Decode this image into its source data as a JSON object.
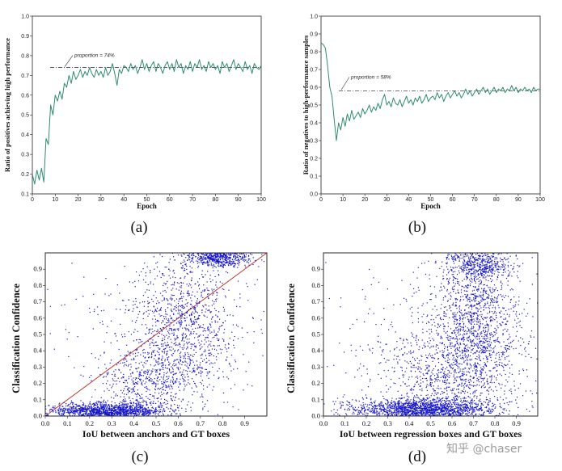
{
  "panel_labels": [
    "(a)",
    "(b)",
    "(c)",
    "(d)"
  ],
  "watermark": "知乎 @chaser",
  "chart_data": [
    {
      "type": "line",
      "panel": "(a)",
      "xlabel": "Epoch",
      "ylabel": "Ratio of positives achieving high performance",
      "xlim": [
        0,
        100
      ],
      "ylim": [
        0.1,
        1.0
      ],
      "x_ticks": [
        "0",
        "10",
        "20",
        "30",
        "40",
        "50",
        "60",
        "70",
        "80",
        "90",
        "100"
      ],
      "y_ticks": [
        "0.1",
        "0.2",
        "0.3",
        "0.4",
        "0.5",
        "0.6",
        "0.7",
        "0.8",
        "0.9",
        "1.0"
      ],
      "reference_line": {
        "y": 0.74,
        "style": "dash-dot"
      },
      "annotation": "proportion = 74%",
      "line_color": "#2e8b6e",
      "series": [
        {
          "x": [
            0,
            1,
            2,
            3,
            4,
            5,
            6,
            7,
            8,
            9,
            10,
            11,
            12,
            13,
            14,
            15,
            16,
            17,
            18,
            19,
            20,
            21,
            22,
            23,
            24,
            25,
            26,
            27,
            28,
            29,
            30,
            31,
            32,
            33,
            34,
            35,
            36,
            37,
            38,
            39,
            40,
            41,
            42,
            43,
            44,
            45,
            46,
            47,
            48,
            49,
            50,
            51,
            52,
            53,
            54,
            55,
            56,
            57,
            58,
            59,
            60,
            61,
            62,
            63,
            64,
            65,
            66,
            67,
            68,
            69,
            70,
            71,
            72,
            73,
            74,
            75,
            76,
            77,
            78,
            79,
            80,
            81,
            82,
            83,
            84,
            85,
            86,
            87,
            88,
            89,
            90,
            91,
            92,
            93,
            94,
            95,
            96,
            97,
            98,
            99,
            100
          ],
          "values": [
            0.2,
            0.15,
            0.22,
            0.17,
            0.23,
            0.16,
            0.38,
            0.35,
            0.55,
            0.5,
            0.6,
            0.57,
            0.62,
            0.58,
            0.66,
            0.64,
            0.7,
            0.66,
            0.72,
            0.68,
            0.7,
            0.73,
            0.69,
            0.72,
            0.7,
            0.74,
            0.71,
            0.69,
            0.73,
            0.7,
            0.72,
            0.69,
            0.74,
            0.7,
            0.72,
            0.76,
            0.71,
            0.65,
            0.73,
            0.71,
            0.75,
            0.74,
            0.72,
            0.76,
            0.73,
            0.75,
            0.71,
            0.74,
            0.78,
            0.73,
            0.76,
            0.72,
            0.75,
            0.77,
            0.72,
            0.76,
            0.74,
            0.71,
            0.75,
            0.77,
            0.73,
            0.76,
            0.72,
            0.78,
            0.74,
            0.76,
            0.71,
            0.75,
            0.73,
            0.77,
            0.72,
            0.76,
            0.74,
            0.78,
            0.73,
            0.75,
            0.72,
            0.77,
            0.74,
            0.76,
            0.73,
            0.75,
            0.71,
            0.77,
            0.74,
            0.76,
            0.72,
            0.75,
            0.78,
            0.73,
            0.76,
            0.74,
            0.72,
            0.77,
            0.73,
            0.75,
            0.71,
            0.76,
            0.74,
            0.73,
            0.75
          ]
        }
      ]
    },
    {
      "type": "line",
      "panel": "(b)",
      "xlabel": "Epoch",
      "ylabel": "Ratio of negatives to high-performance samples",
      "xlim": [
        0,
        100
      ],
      "ylim": [
        0.0,
        1.0
      ],
      "x_ticks": [
        "0",
        "10",
        "20",
        "30",
        "40",
        "50",
        "60",
        "70",
        "80",
        "90",
        "100"
      ],
      "y_ticks": [
        "0.0",
        "0.1",
        "0.2",
        "0.3",
        "0.4",
        "0.5",
        "0.6",
        "0.7",
        "0.8",
        "0.9",
        "1.0"
      ],
      "reference_line": {
        "y": 0.58,
        "style": "dash-dot"
      },
      "annotation": "proportion = 58%",
      "line_color": "#2e8b6e",
      "series": [
        {
          "x": [
            0,
            1,
            2,
            3,
            4,
            5,
            6,
            7,
            8,
            9,
            10,
            11,
            12,
            13,
            14,
            15,
            16,
            17,
            18,
            19,
            20,
            21,
            22,
            23,
            24,
            25,
            26,
            27,
            28,
            29,
            30,
            31,
            32,
            33,
            34,
            35,
            36,
            37,
            38,
            39,
            40,
            41,
            42,
            43,
            44,
            45,
            46,
            47,
            48,
            49,
            50,
            51,
            52,
            53,
            54,
            55,
            56,
            57,
            58,
            59,
            60,
            61,
            62,
            63,
            64,
            65,
            66,
            67,
            68,
            69,
            70,
            71,
            72,
            73,
            74,
            75,
            76,
            77,
            78,
            79,
            80,
            81,
            82,
            83,
            84,
            85,
            86,
            87,
            88,
            89,
            90,
            91,
            92,
            93,
            94,
            95,
            96,
            97,
            98,
            99,
            100
          ],
          "values": [
            0.85,
            0.84,
            0.82,
            0.72,
            0.6,
            0.55,
            0.42,
            0.3,
            0.4,
            0.36,
            0.43,
            0.38,
            0.45,
            0.41,
            0.47,
            0.42,
            0.44,
            0.46,
            0.43,
            0.48,
            0.45,
            0.47,
            0.5,
            0.46,
            0.49,
            0.47,
            0.51,
            0.48,
            0.53,
            0.56,
            0.5,
            0.52,
            0.49,
            0.54,
            0.51,
            0.5,
            0.53,
            0.49,
            0.52,
            0.55,
            0.51,
            0.53,
            0.5,
            0.54,
            0.52,
            0.55,
            0.51,
            0.53,
            0.56,
            0.52,
            0.54,
            0.55,
            0.53,
            0.57,
            0.54,
            0.56,
            0.52,
            0.55,
            0.57,
            0.54,
            0.56,
            0.58,
            0.55,
            0.57,
            0.54,
            0.56,
            0.59,
            0.56,
            0.58,
            0.55,
            0.57,
            0.59,
            0.56,
            0.58,
            0.6,
            0.57,
            0.59,
            0.56,
            0.58,
            0.6,
            0.57,
            0.59,
            0.58,
            0.6,
            0.57,
            0.59,
            0.58,
            0.61,
            0.58,
            0.6,
            0.57,
            0.59,
            0.58,
            0.6,
            0.58,
            0.59,
            0.57,
            0.6,
            0.58,
            0.59,
            0.59
          ]
        }
      ]
    },
    {
      "type": "scatter",
      "panel": "(c)",
      "xlabel": "IoU between anchors and GT boxes",
      "ylabel": "Classification Confidence",
      "xlim": [
        0.0,
        1.0
      ],
      "ylim": [
        0.0,
        1.0
      ],
      "x_ticks": [
        "0.0",
        "0.1",
        "0.2",
        "0.3",
        "0.4",
        "0.5",
        "0.6",
        "0.7",
        "0.8",
        "0.9"
      ],
      "y_ticks": [
        "0.0",
        "0.1",
        "0.2",
        "0.3",
        "0.4",
        "0.5",
        "0.6",
        "0.7",
        "0.8",
        "0.9"
      ],
      "diagonal": {
        "from": [
          0.0,
          0.0
        ],
        "to": [
          1.0,
          1.0
        ],
        "color": "#c0392b"
      },
      "point_color": "#1515c8",
      "clusters": [
        {
          "cx": 0.28,
          "cy": 0.03,
          "sx": 0.13,
          "sy": 0.025,
          "count": 1400
        },
        {
          "cx": 0.78,
          "cy": 0.97,
          "sx": 0.07,
          "sy": 0.03,
          "count": 600
        },
        {
          "cx": 0.62,
          "cy": 0.55,
          "sx": 0.12,
          "sy": 0.22,
          "count": 1100
        },
        {
          "cx": 0.45,
          "cy": 0.2,
          "sx": 0.1,
          "sy": 0.12,
          "count": 500
        },
        {
          "cx": 0.5,
          "cy": 0.5,
          "sx": 0.3,
          "sy": 0.3,
          "count": 250
        }
      ]
    },
    {
      "type": "scatter",
      "panel": "(d)",
      "xlabel": "IoU between regression boxes and GT boxes",
      "ylabel": "Classification Confidence",
      "xlim": [
        0.0,
        1.0
      ],
      "ylim": [
        0.0,
        1.0
      ],
      "x_ticks": [
        "0.0",
        "0.1",
        "0.2",
        "0.3",
        "0.4",
        "0.5",
        "0.6",
        "0.7",
        "0.8",
        "0.9"
      ],
      "y_ticks": [
        "0.0",
        "0.1",
        "0.2",
        "0.3",
        "0.4",
        "0.5",
        "0.6",
        "0.7",
        "0.8",
        "0.9"
      ],
      "point_color": "#1515c8",
      "clusters": [
        {
          "cx": 0.45,
          "cy": 0.04,
          "sx": 0.17,
          "sy": 0.035,
          "count": 1700
        },
        {
          "cx": 0.72,
          "cy": 0.55,
          "sx": 0.1,
          "sy": 0.28,
          "count": 1500
        },
        {
          "cx": 0.72,
          "cy": 0.93,
          "sx": 0.07,
          "sy": 0.05,
          "count": 450
        },
        {
          "cx": 0.55,
          "cy": 0.25,
          "sx": 0.14,
          "sy": 0.16,
          "count": 700
        },
        {
          "cx": 0.5,
          "cy": 0.5,
          "sx": 0.3,
          "sy": 0.3,
          "count": 250
        }
      ]
    }
  ]
}
